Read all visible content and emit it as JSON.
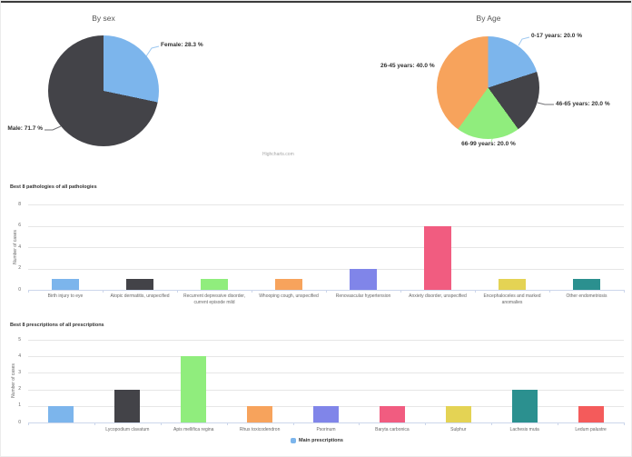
{
  "credits": "Highcharts.com",
  "chart_data": [
    {
      "type": "pie",
      "title": "By sex",
      "slices": [
        {
          "name": "Female",
          "pct": 28.3,
          "label": "Female: 28.3 %",
          "color": "#7cb5ec"
        },
        {
          "name": "Male",
          "pct": 71.7,
          "label": "Male: 71.7 %",
          "color": "#434348"
        }
      ]
    },
    {
      "type": "pie",
      "title": "By Age",
      "slices": [
        {
          "name": "0-17 years",
          "pct": 20.0,
          "label": "0-17 years: 20.0 %",
          "color": "#7cb5ec"
        },
        {
          "name": "46-65 years",
          "pct": 20.0,
          "label": "46-65 years: 20.0 %",
          "color": "#434348"
        },
        {
          "name": "66-99 years",
          "pct": 20.0,
          "label": "66-99 years: 20.0 %",
          "color": "#90ed7d"
        },
        {
          "name": "26-45 years",
          "pct": 40.0,
          "label": "26-45 years: 40.0 %",
          "color": "#f7a35c"
        }
      ]
    },
    {
      "type": "bar",
      "title": "Best 8 pathologies of all pathologies",
      "ylabel": "Number of cases",
      "ylim": [
        0,
        8
      ],
      "yticks": [
        0,
        2,
        4,
        6,
        8
      ],
      "grid": true,
      "categories": [
        "Birth injury to eye",
        "Atopic dermatitis, unspecified",
        "Recurrent depressive disorder, current episode mild",
        "Whooping cough, unspecified",
        "Renovascular hypertension",
        "Anxiety disorder, unspecified",
        "Encephaloceles and marked anomalies",
        "Other endometriosis"
      ],
      "values": [
        1,
        1,
        1,
        1,
        2,
        6,
        1,
        1
      ],
      "colors": [
        "#7cb5ec",
        "#434348",
        "#90ed7d",
        "#f7a35c",
        "#8085e9",
        "#f15c80",
        "#e4d354",
        "#2b908f"
      ]
    },
    {
      "type": "bar",
      "title": "Best 8 prescriptions of all prescriptions",
      "ylabel": "Number of cases",
      "ylim": [
        0,
        5
      ],
      "yticks": [
        0,
        1,
        2,
        3,
        4,
        5
      ],
      "grid": true,
      "legend": "Main prescriptions",
      "legend_color": "#7cb5ec",
      "categories": [
        "",
        "Lycopodium clavatum",
        "Apis mellifica regina",
        "Rhus toxicodendron",
        "Psorinum",
        "Baryta carbonica",
        "Sulphur",
        "Lachesis muta",
        "Ledum palustre"
      ],
      "values": [
        1,
        2,
        4,
        1,
        1,
        1,
        1,
        2,
        1
      ],
      "colors": [
        "#7cb5ec",
        "#434348",
        "#90ed7d",
        "#f7a35c",
        "#8085e9",
        "#f15c80",
        "#e4d354",
        "#2b908f",
        "#f45b5b"
      ]
    }
  ]
}
